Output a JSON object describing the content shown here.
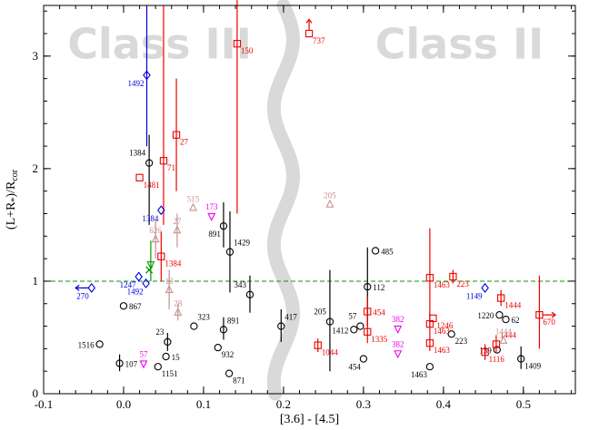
{
  "chart_data": {
    "type": "scatter",
    "xlabel": "[3.6] - [4.5]",
    "ylabel": "(L+R",
    "ylabel_sub1": "*",
    "ylabel_mid": ")/R",
    "ylabel_sub2": "cor",
    "xlim": [
      -0.1,
      0.565
    ],
    "ylim": [
      0,
      3.45
    ],
    "xticks": [
      -0.1,
      0.0,
      0.1,
      0.2,
      0.3,
      0.4,
      0.5
    ],
    "xtick_labels": [
      "-0.1",
      "0.0",
      "0.1",
      "0.2",
      "0.3",
      "0.4",
      "0.5"
    ],
    "yticks": [
      0,
      1,
      2,
      3
    ],
    "ytick_labels": [
      "0",
      "1",
      "2",
      "3"
    ],
    "grid": false,
    "region_labels": [
      {
        "text": "Class III",
        "x": 0.045,
        "y": 3.1
      },
      {
        "text": "Class II",
        "x": 0.42,
        "y": 3.1
      }
    ],
    "reference_line": {
      "y": 1.0,
      "color": "#009900",
      "style": "dashed"
    },
    "divider": {
      "x_center": 0.2,
      "amplitude": 0.012,
      "color": "#d9d9d9"
    },
    "colors": {
      "black": "#000000",
      "red": "#ee0000",
      "blue": "#0000dd",
      "magenta": "#ee00ee",
      "tan": "#c89090",
      "green": "#009900"
    },
    "points": [
      {
        "x": 0.032,
        "y": 2.05,
        "m": "circle",
        "c": "black",
        "label": "1384",
        "ld": "ul",
        "err": [
          1.5,
          2.3
        ]
      },
      {
        "x": 0.0,
        "y": 0.78,
        "m": "circle",
        "c": "black",
        "label": "867",
        "ld": "r"
      },
      {
        "x": -0.03,
        "y": 0.44,
        "m": "circle",
        "c": "black",
        "label": "1516",
        "ld": "l"
      },
      {
        "x": -0.005,
        "y": 0.27,
        "m": "circle",
        "c": "black",
        "label": "107",
        "ld": "r",
        "err": [
          0.2,
          0.35
        ]
      },
      {
        "x": 0.055,
        "y": 0.46,
        "m": "circle",
        "c": "black",
        "label": "23",
        "ld": "ul",
        "err": [
          0.38,
          0.54
        ]
      },
      {
        "x": 0.053,
        "y": 0.33,
        "m": "circle",
        "c": "black",
        "label": "15",
        "ld": "r"
      },
      {
        "x": 0.043,
        "y": 0.24,
        "m": "circle",
        "c": "black",
        "label": "1151",
        "ld": "dr"
      },
      {
        "x": 0.088,
        "y": 0.6,
        "m": "circle",
        "c": "black",
        "label": "323",
        "ld": "ur"
      },
      {
        "x": 0.118,
        "y": 0.41,
        "m": "circle",
        "c": "black",
        "label": "932",
        "ld": "dr"
      },
      {
        "x": 0.132,
        "y": 0.18,
        "m": "circle",
        "c": "black",
        "label": "871",
        "ld": "dr"
      },
      {
        "x": 0.125,
        "y": 1.49,
        "m": "circle",
        "c": "black",
        "label": "891",
        "ld": "dl",
        "err": [
          1.3,
          1.7
        ]
      },
      {
        "x": 0.133,
        "y": 1.26,
        "m": "circle",
        "c": "black",
        "label": "1429",
        "ld": "ur",
        "err": [
          0.9,
          1.62
        ]
      },
      {
        "x": 0.125,
        "y": 0.57,
        "m": "circle",
        "c": "black",
        "label": "891",
        "ld": "ur",
        "err": [
          0.48,
          0.68
        ]
      },
      {
        "x": 0.158,
        "y": 0.88,
        "m": "circle",
        "c": "black",
        "label": "343",
        "ld": "ul",
        "err": [
          0.72,
          1.05
        ]
      },
      {
        "x": 0.197,
        "y": 0.6,
        "m": "circle",
        "c": "black",
        "label": "417",
        "ld": "ur",
        "err": [
          0.46,
          0.75
        ]
      },
      {
        "x": 0.258,
        "y": 0.64,
        "m": "circle",
        "c": "black",
        "label": "205",
        "ld": "ul",
        "err": [
          0.2,
          1.1
        ]
      },
      {
        "x": 0.288,
        "y": 0.57,
        "m": "circle",
        "c": "black",
        "label": "1412",
        "ld": "l"
      },
      {
        "x": 0.296,
        "y": 0.6,
        "m": "circle",
        "c": "black",
        "label": "57",
        "ld": "ul"
      },
      {
        "x": 0.3,
        "y": 0.31,
        "m": "circle",
        "c": "black",
        "label": "454",
        "ld": "dl"
      },
      {
        "x": 0.305,
        "y": 0.95,
        "m": "circle",
        "c": "black",
        "label": "112",
        "ld": "r",
        "err": [
          0.6,
          1.3
        ]
      },
      {
        "x": 0.315,
        "y": 1.27,
        "m": "circle",
        "c": "black",
        "label": "485",
        "ld": "r"
      },
      {
        "x": 0.383,
        "y": 0.24,
        "m": "circle",
        "c": "black",
        "label": "1463",
        "ld": "dl"
      },
      {
        "x": 0.41,
        "y": 0.53,
        "m": "circle",
        "c": "black",
        "label": "223",
        "ld": "dr"
      },
      {
        "x": 0.467,
        "y": 0.39,
        "m": "circle",
        "c": "black",
        "label": "139",
        "ld": "l"
      },
      {
        "x": 0.47,
        "y": 0.7,
        "m": "circle",
        "c": "black",
        "label": "1220",
        "ld": "l"
      },
      {
        "x": 0.478,
        "y": 0.66,
        "m": "circle",
        "c": "black",
        "label": "62",
        "ld": "r"
      },
      {
        "x": 0.497,
        "y": 0.31,
        "m": "circle",
        "c": "black",
        "label": "1409",
        "ld": "dr",
        "err": [
          0.22,
          0.42
        ]
      },
      {
        "x": 0.142,
        "y": 3.11,
        "m": "square",
        "c": "red",
        "label": "150",
        "ld": "dr",
        "err": [
          1.6,
          3.5
        ]
      },
      {
        "x": 0.232,
        "y": 3.2,
        "m": "square",
        "c": "red",
        "label": "737",
        "ld": "dr",
        "arrow": "up"
      },
      {
        "x": 0.02,
        "y": 1.92,
        "m": "square",
        "c": "red",
        "label": "1481",
        "ld": "dr"
      },
      {
        "x": 0.05,
        "y": 2.07,
        "m": "square",
        "c": "red",
        "label": "71",
        "ld": "dr",
        "err": [
          1.5,
          3.45
        ]
      },
      {
        "x": 0.066,
        "y": 2.3,
        "m": "square",
        "c": "red",
        "label": "27",
        "ld": "dr",
        "err": [
          1.8,
          2.8
        ]
      },
      {
        "x": 0.047,
        "y": 1.22,
        "m": "square",
        "c": "red",
        "label": "1384",
        "ld": "dr",
        "err": [
          1.0,
          1.44
        ]
      },
      {
        "x": 0.243,
        "y": 0.43,
        "m": "square",
        "c": "red",
        "label": "1044",
        "ld": "dr",
        "err": [
          0.37,
          0.49
        ]
      },
      {
        "x": 0.305,
        "y": 0.73,
        "m": "square",
        "c": "red",
        "label": "454",
        "ld": "r",
        "err": [
          0.6,
          0.86
        ]
      },
      {
        "x": 0.305,
        "y": 0.55,
        "m": "square",
        "c": "red",
        "label": "1335",
        "ld": "dr",
        "err": [
          0.45,
          0.65
        ]
      },
      {
        "x": 0.383,
        "y": 1.03,
        "m": "square",
        "c": "red",
        "label": "1463",
        "ld": "dr",
        "err": [
          0.6,
          1.47
        ]
      },
      {
        "x": 0.412,
        "y": 1.04,
        "m": "square",
        "c": "red",
        "label": "223",
        "ld": "dr",
        "err": [
          0.98,
          1.1
        ]
      },
      {
        "x": 0.383,
        "y": 0.62,
        "m": "square",
        "c": "red",
        "label": "1463",
        "ld": "dr",
        "err": [
          0.52,
          0.72
        ]
      },
      {
        "x": 0.387,
        "y": 0.67,
        "m": "square",
        "c": "red",
        "label": "1246",
        "ld": "dr"
      },
      {
        "x": 0.383,
        "y": 0.45,
        "m": "square",
        "c": "red",
        "label": "1463",
        "ld": "dr",
        "err": [
          0.38,
          0.52
        ]
      },
      {
        "x": 0.452,
        "y": 0.37,
        "m": "square",
        "c": "red",
        "label": "1116",
        "ld": "dr",
        "err": [
          0.3,
          0.44
        ]
      },
      {
        "x": 0.466,
        "y": 0.44,
        "m": "square",
        "c": "red",
        "label": "1444",
        "ld": "ur",
        "err": [
          0.36,
          0.52
        ]
      },
      {
        "x": 0.472,
        "y": 0.85,
        "m": "square",
        "c": "red",
        "label": "1444",
        "ld": "dr",
        "err": [
          0.78,
          0.92
        ]
      },
      {
        "x": 0.52,
        "y": 0.7,
        "m": "square",
        "c": "red",
        "label": "670",
        "ld": "dr",
        "err": [
          0.4,
          1.05
        ],
        "arrow": "right"
      },
      {
        "x": 0.029,
        "y": 2.83,
        "m": "diamond",
        "c": "blue",
        "label": "1492",
        "ld": "dl",
        "err": [
          2.2,
          3.45
        ]
      },
      {
        "x": 0.047,
        "y": 1.63,
        "m": "diamond",
        "c": "blue",
        "label": "1384",
        "ld": "dl"
      },
      {
        "x": -0.04,
        "y": 0.94,
        "m": "diamond",
        "c": "blue",
        "label": "270",
        "ld": "dl",
        "arrow": "left"
      },
      {
        "x": 0.019,
        "y": 1.04,
        "m": "diamond",
        "c": "blue",
        "label": "1247",
        "ld": "dl"
      },
      {
        "x": 0.028,
        "y": 0.98,
        "m": "diamond",
        "c": "blue",
        "label": "1492",
        "ld": "dl"
      },
      {
        "x": 0.452,
        "y": 0.94,
        "m": "diamond",
        "c": "blue",
        "label": "1149",
        "ld": "dl"
      },
      {
        "x": 0.11,
        "y": 1.58,
        "m": "triangle-down",
        "c": "magenta",
        "label": "173",
        "ld": "u"
      },
      {
        "x": 0.025,
        "y": 0.27,
        "m": "triangle-down",
        "c": "magenta",
        "label": "57",
        "ld": "u"
      },
      {
        "x": 0.343,
        "y": 0.58,
        "m": "triangle-down",
        "c": "magenta",
        "label": "382",
        "ld": "u"
      },
      {
        "x": 0.343,
        "y": 0.36,
        "m": "triangle-down",
        "c": "magenta",
        "label": "382",
        "ld": "u"
      },
      {
        "x": 0.087,
        "y": 1.65,
        "m": "triangle",
        "c": "tan",
        "label": "515",
        "ld": "u"
      },
      {
        "x": 0.04,
        "y": 1.37,
        "m": "triangle",
        "c": "tan",
        "label": "626",
        "ld": "u",
        "err": [
          1.2,
          1.55
        ]
      },
      {
        "x": 0.067,
        "y": 1.45,
        "m": "triangle",
        "c": "tan",
        "label": "27",
        "ld": "u",
        "err": [
          1.3,
          1.6
        ]
      },
      {
        "x": 0.057,
        "y": 0.92,
        "m": "triangle",
        "c": "tan",
        "label": "13",
        "ld": "u",
        "err": [
          0.75,
          1.1
        ]
      },
      {
        "x": 0.068,
        "y": 0.72,
        "m": "triangle",
        "c": "tan",
        "label": "28",
        "ld": "u",
        "err": [
          0.65,
          0.8
        ]
      },
      {
        "x": 0.258,
        "y": 1.68,
        "m": "triangle",
        "c": "tan",
        "label": "205",
        "ld": "u"
      },
      {
        "x": 0.475,
        "y": 0.47,
        "m": "triangle",
        "c": "tan",
        "label": "1444",
        "ld": "u"
      },
      {
        "x": 0.034,
        "y": 1.15,
        "m": "triangle-down",
        "c": "green",
        "label": "",
        "ld": "u",
        "err": [
          1.0,
          1.36
        ]
      },
      {
        "x": 0.032,
        "y": 1.1,
        "m": "x",
        "c": "green",
        "label": "",
        "ld": "u"
      }
    ]
  }
}
